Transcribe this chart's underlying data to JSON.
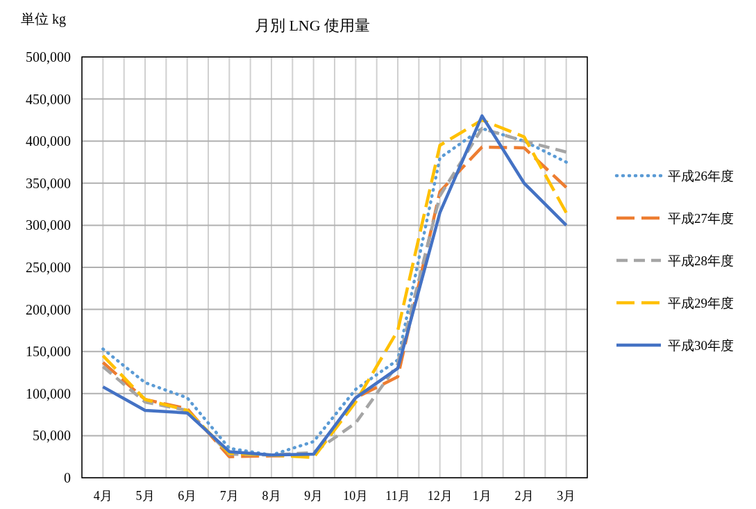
{
  "chart_data": {
    "type": "line",
    "title": "月別 LNG 使用量",
    "ylabel": "単位 kg",
    "categories": [
      "4月",
      "5月",
      "6月",
      "7月",
      "8月",
      "9月",
      "10月",
      "11月",
      "12月",
      "1月",
      "2月",
      "3月"
    ],
    "series": [
      {
        "name": "平成26年度",
        "color": "#5b9bd5",
        "line_style": "dotted",
        "values": [
          153000,
          113000,
          95000,
          35000,
          27000,
          43000,
          105000,
          140000,
          380000,
          415000,
          400000,
          375000
        ]
      },
      {
        "name": "平成27年度",
        "color": "#ed7d31",
        "line_style": "dashed",
        "values": [
          137000,
          93000,
          82000,
          25000,
          26000,
          26000,
          95000,
          120000,
          340000,
          393000,
          392000,
          345000
        ]
      },
      {
        "name": "平成28年度",
        "color": "#a5a5a5",
        "line_style": "dashed",
        "values": [
          132000,
          90000,
          80000,
          28000,
          27000,
          30000,
          65000,
          135000,
          335000,
          415000,
          400000,
          387000
        ]
      },
      {
        "name": "平成29年度",
        "color": "#ffc000",
        "line_style": "dashed",
        "values": [
          145000,
          93000,
          80000,
          29000,
          27000,
          24000,
          90000,
          175000,
          395000,
          425000,
          405000,
          315000
        ]
      },
      {
        "name": "平成30年度",
        "color": "#4472c4",
        "line_style": "solid",
        "values": [
          108000,
          80000,
          77000,
          31000,
          27000,
          28000,
          95000,
          130000,
          315000,
          430000,
          350000,
          300000
        ]
      }
    ],
    "ylim": [
      0,
      500000
    ],
    "yticks": [
      0,
      {
        "value": 50000,
        "label": "50,000"
      },
      {
        "value": 100000,
        "label": "100,000"
      },
      {
        "value": 150000,
        "label": "150,000"
      },
      {
        "value": 200000,
        "label": "200,000"
      },
      {
        "value": 250000,
        "label": "250,000"
      },
      {
        "value": 300000,
        "label": "300,000"
      },
      {
        "value": 350000,
        "label": "350,000"
      },
      {
        "value": 400000,
        "label": "400,000"
      },
      {
        "value": 450000,
        "label": "450,000"
      },
      {
        "value": 500000,
        "label": "500,000"
      }
    ],
    "grid": true,
    "legend": "right",
    "marker": "none"
  }
}
